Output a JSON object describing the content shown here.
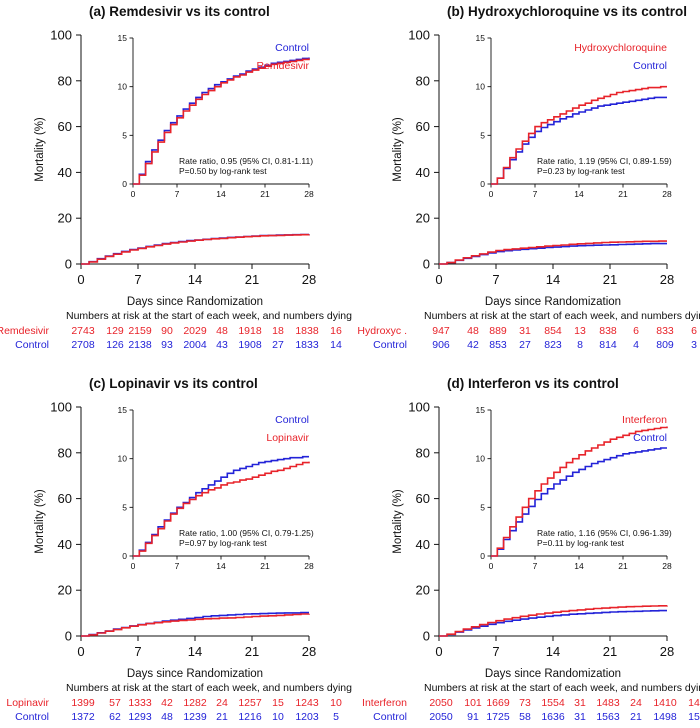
{
  "colors": {
    "treatment": "#e8232a",
    "control": "#2323d8",
    "axis": "#111111"
  },
  "chart_data": [
    {
      "type": "line",
      "title": "(a) Remdesivir vs its control",
      "xlabel": "Days since Randomization",
      "ylabel": "Mortality (%)",
      "xlim": [
        0,
        28
      ],
      "ylim": [
        0,
        100
      ],
      "xticks": [
        "0",
        "7",
        "14",
        "21",
        "28"
      ],
      "yticks": [
        "0",
        "20",
        "40",
        "60",
        "80",
        "100"
      ],
      "inset": {
        "xlim": [
          0,
          28
        ],
        "ylim": [
          0,
          15
        ],
        "xticks": [
          "0",
          "7",
          "14",
          "21",
          "28"
        ],
        "yticks": [
          "0",
          "5",
          "10",
          "15"
        ],
        "annotation": [
          "Rate ratio, 0.95 (95% CI, 0.81-1.11)",
          "P=0.50 by log-rank test"
        ],
        "labels": {
          "treatment": "Remdesivir",
          "control": "Control"
        },
        "label_order": "control-top"
      },
      "series": [
        {
          "name": "Remdesivir",
          "role": "treatment",
          "x": [
            0,
            1,
            2,
            3,
            4,
            5,
            6,
            7,
            8,
            9,
            10,
            11,
            12,
            13,
            14,
            15,
            16,
            17,
            18,
            19,
            20,
            21,
            22,
            23,
            24,
            25,
            26,
            27,
            28
          ],
          "y": [
            0,
            0.9,
            2.1,
            3.3,
            4.3,
            5.3,
            6.1,
            6.8,
            7.5,
            8.1,
            8.7,
            9.2,
            9.6,
            10.0,
            10.4,
            10.7,
            11.0,
            11.2,
            11.5,
            11.7,
            11.9,
            12.1,
            12.3,
            12.4,
            12.5,
            12.6,
            12.7,
            12.8,
            12.9
          ]
        },
        {
          "name": "Control",
          "role": "control",
          "x": [
            0,
            1,
            2,
            3,
            4,
            5,
            6,
            7,
            8,
            9,
            10,
            11,
            12,
            13,
            14,
            15,
            16,
            17,
            18,
            19,
            20,
            21,
            22,
            23,
            24,
            25,
            26,
            27,
            28
          ],
          "y": [
            0,
            1.0,
            2.3,
            3.5,
            4.5,
            5.5,
            6.3,
            7.0,
            7.7,
            8.3,
            8.9,
            9.4,
            9.8,
            10.2,
            10.5,
            10.8,
            11.1,
            11.3,
            11.6,
            11.8,
            12.0,
            12.2,
            12.4,
            12.5,
            12.6,
            12.7,
            12.8,
            12.9,
            13.0
          ]
        }
      ],
      "risk_table": {
        "header": "Numbers at risk at the start of each week, and numbers dying",
        "rows": [
          {
            "label": "Remdesivir",
            "role": "treatment",
            "values": [
              "2743",
              "129",
              "2159",
              "90",
              "2029",
              "48",
              "1918",
              "18",
              "1838",
              "16"
            ]
          },
          {
            "label": "Control",
            "role": "control",
            "values": [
              "2708",
              "126",
              "2138",
              "93",
              "2004",
              "43",
              "1908",
              "27",
              "1833",
              "14"
            ]
          }
        ]
      }
    },
    {
      "type": "line",
      "title": "(b) Hydroxychloroquine vs its control",
      "xlabel": "Days since Randomization",
      "ylabel": "Mortality (%)",
      "xlim": [
        0,
        28
      ],
      "ylim": [
        0,
        100
      ],
      "xticks": [
        "0",
        "7",
        "14",
        "21",
        "28"
      ],
      "yticks": [
        "0",
        "20",
        "40",
        "60",
        "80",
        "100"
      ],
      "inset": {
        "xlim": [
          0,
          28
        ],
        "ylim": [
          0,
          15
        ],
        "xticks": [
          "0",
          "7",
          "14",
          "21",
          "28"
        ],
        "yticks": [
          "0",
          "5",
          "10",
          "15"
        ],
        "annotation": [
          "Rate ratio, 1.19 (95% CI, 0.89-1.59)",
          "P=0.23 by log-rank test"
        ],
        "labels": {
          "treatment": "Hydroxychloroquine",
          "control": "Control"
        },
        "label_order": "treatment-top"
      },
      "series": [
        {
          "name": "Hydroxychloroquine",
          "role": "treatment",
          "x": [
            0,
            1,
            2,
            3,
            4,
            5,
            6,
            7,
            8,
            9,
            10,
            11,
            12,
            13,
            14,
            15,
            16,
            17,
            18,
            19,
            20,
            21,
            22,
            23,
            24,
            25,
            26,
            27,
            28
          ],
          "y": [
            0,
            0.6,
            1.7,
            2.7,
            3.6,
            4.4,
            5.2,
            5.9,
            6.3,
            6.6,
            6.9,
            7.2,
            7.5,
            7.8,
            8.1,
            8.3,
            8.6,
            8.8,
            9.0,
            9.2,
            9.4,
            9.5,
            9.6,
            9.7,
            9.8,
            9.9,
            9.9,
            10.0,
            10.0
          ]
        },
        {
          "name": "Control",
          "role": "control",
          "x": [
            0,
            1,
            2,
            3,
            4,
            5,
            6,
            7,
            8,
            9,
            10,
            11,
            12,
            13,
            14,
            15,
            16,
            17,
            18,
            19,
            20,
            21,
            22,
            23,
            24,
            25,
            26,
            27,
            28
          ],
          "y": [
            0,
            0.6,
            1.6,
            2.5,
            3.3,
            4.1,
            4.8,
            5.4,
            5.8,
            6.1,
            6.4,
            6.7,
            6.9,
            7.2,
            7.4,
            7.6,
            7.8,
            8.0,
            8.1,
            8.2,
            8.3,
            8.4,
            8.5,
            8.6,
            8.7,
            8.8,
            8.9,
            8.9,
            8.9
          ]
        }
      ],
      "risk_table": {
        "header": "Numbers at risk at the start of each week, and numbers dying",
        "rows": [
          {
            "label": "Hydroxyc .",
            "role": "treatment",
            "values": [
              "947",
              "48",
              "889",
              "31",
              "854",
              "13",
              "838",
              "6",
              "833",
              "6"
            ]
          },
          {
            "label": "Control",
            "role": "control",
            "values": [
              "906",
              "42",
              "853",
              "27",
              "823",
              "8",
              "814",
              "4",
              "809",
              "3"
            ]
          }
        ]
      }
    },
    {
      "type": "line",
      "title": "(c) Lopinavir vs its control",
      "xlabel": "Days since Randomization",
      "ylabel": "Mortality (%)",
      "xlim": [
        0,
        28
      ],
      "ylim": [
        0,
        100
      ],
      "xticks": [
        "0",
        "7",
        "14",
        "21",
        "28"
      ],
      "yticks": [
        "0",
        "20",
        "40",
        "60",
        "80",
        "100"
      ],
      "inset": {
        "xlim": [
          0,
          28
        ],
        "ylim": [
          0,
          15
        ],
        "xticks": [
          "0",
          "7",
          "14",
          "21",
          "28"
        ],
        "yticks": [
          "0",
          "5",
          "10",
          "15"
        ],
        "annotation": [
          "Rate ratio, 1.00 (95% CI, 0.79-1.25)",
          "P=0.97 by log-rank test"
        ],
        "labels": {
          "treatment": "Lopinavir",
          "control": "Control"
        },
        "label_order": "control-top"
      },
      "series": [
        {
          "name": "Lopinavir",
          "role": "treatment",
          "x": [
            0,
            1,
            2,
            3,
            4,
            5,
            6,
            7,
            8,
            9,
            10,
            11,
            12,
            13,
            14,
            15,
            16,
            17,
            18,
            19,
            20,
            21,
            22,
            23,
            24,
            25,
            26,
            27,
            28
          ],
          "y": [
            0,
            0.5,
            1.3,
            2.1,
            2.8,
            3.6,
            4.3,
            4.9,
            5.4,
            5.8,
            6.2,
            6.5,
            6.8,
            7.0,
            7.3,
            7.5,
            7.6,
            7.8,
            7.9,
            8.1,
            8.3,
            8.5,
            8.7,
            8.8,
            9.0,
            9.2,
            9.4,
            9.6,
            9.7
          ]
        },
        {
          "name": "Control",
          "role": "control",
          "x": [
            0,
            1,
            2,
            3,
            4,
            5,
            6,
            7,
            8,
            9,
            10,
            11,
            12,
            13,
            14,
            15,
            16,
            17,
            18,
            19,
            20,
            21,
            22,
            23,
            24,
            25,
            26,
            27,
            28
          ],
          "y": [
            0,
            0.6,
            1.4,
            2.2,
            3.0,
            3.7,
            4.4,
            5.0,
            5.5,
            6.0,
            6.5,
            6.9,
            7.3,
            7.7,
            8.1,
            8.5,
            8.8,
            9.0,
            9.2,
            9.4,
            9.6,
            9.7,
            9.8,
            9.9,
            10.0,
            10.1,
            10.1,
            10.2,
            10.2
          ]
        }
      ],
      "risk_table": {
        "header": "Numbers at risk at the start of each week, and numbers dying",
        "rows": [
          {
            "label": "Lopinavir",
            "role": "treatment",
            "values": [
              "1399",
              "57",
              "1333",
              "42",
              "1282",
              "24",
              "1257",
              "15",
              "1243",
              "10"
            ]
          },
          {
            "label": "Control",
            "role": "control",
            "values": [
              "1372",
              "62",
              "1293",
              "48",
              "1239",
              "21",
              "1216",
              "10",
              "1203",
              "5"
            ]
          }
        ]
      }
    },
    {
      "type": "line",
      "title": "(d) Interferon vs its control",
      "xlabel": "Days since Randomization",
      "ylabel": "Mortality (%)",
      "xlim": [
        0,
        28
      ],
      "ylim": [
        0,
        100
      ],
      "xticks": [
        "0",
        "7",
        "14",
        "21",
        "28"
      ],
      "yticks": [
        "0",
        "20",
        "40",
        "60",
        "80",
        "100"
      ],
      "inset": {
        "xlim": [
          0,
          28
        ],
        "ylim": [
          0,
          15
        ],
        "xticks": [
          "0",
          "7",
          "14",
          "21",
          "28"
        ],
        "yticks": [
          "0",
          "5",
          "10",
          "15"
        ],
        "annotation": [
          "Rate ratio, 1.16 (95% CI, 0.96-1.39)",
          "P=0.11 by log-rank test"
        ],
        "labels": {
          "treatment": "Interferon",
          "control": "Control"
        },
        "label_order": "treatment-top"
      },
      "series": [
        {
          "name": "Interferon",
          "role": "treatment",
          "x": [
            0,
            1,
            2,
            3,
            4,
            5,
            6,
            7,
            8,
            9,
            10,
            11,
            12,
            13,
            14,
            15,
            16,
            17,
            18,
            19,
            20,
            21,
            22,
            23,
            24,
            25,
            26,
            27,
            28
          ],
          "y": [
            0,
            0.8,
            1.9,
            3.0,
            4.0,
            5.0,
            5.9,
            6.7,
            7.4,
            8.0,
            8.6,
            9.1,
            9.6,
            10.0,
            10.4,
            10.8,
            11.1,
            11.4,
            11.7,
            12.0,
            12.2,
            12.4,
            12.6,
            12.8,
            12.9,
            13.0,
            13.1,
            13.2,
            13.3
          ]
        },
        {
          "name": "Control",
          "role": "control",
          "x": [
            0,
            1,
            2,
            3,
            4,
            5,
            6,
            7,
            8,
            9,
            10,
            11,
            12,
            13,
            14,
            15,
            16,
            17,
            18,
            19,
            20,
            21,
            22,
            23,
            24,
            25,
            26,
            27,
            28
          ],
          "y": [
            0,
            0.7,
            1.7,
            2.6,
            3.5,
            4.3,
            5.1,
            5.8,
            6.4,
            6.9,
            7.4,
            7.8,
            8.2,
            8.6,
            8.9,
            9.2,
            9.5,
            9.7,
            9.9,
            10.1,
            10.3,
            10.5,
            10.6,
            10.7,
            10.8,
            10.9,
            11.0,
            11.1,
            11.1
          ]
        }
      ],
      "risk_table": {
        "header": "Numbers at risk at the start of each week, and numbers dying",
        "rows": [
          {
            "label": "Interferon",
            "role": "treatment",
            "values": [
              "2050",
              "101",
              "1669",
              "73",
              "1554",
              "31",
              "1483",
              "24",
              "1410",
              "14"
            ]
          },
          {
            "label": "Control",
            "role": "control",
            "values": [
              "2050",
              "91",
              "1725",
              "58",
              "1636",
              "31",
              "1563",
              "21",
              "1498",
              "15"
            ]
          }
        ]
      }
    }
  ]
}
